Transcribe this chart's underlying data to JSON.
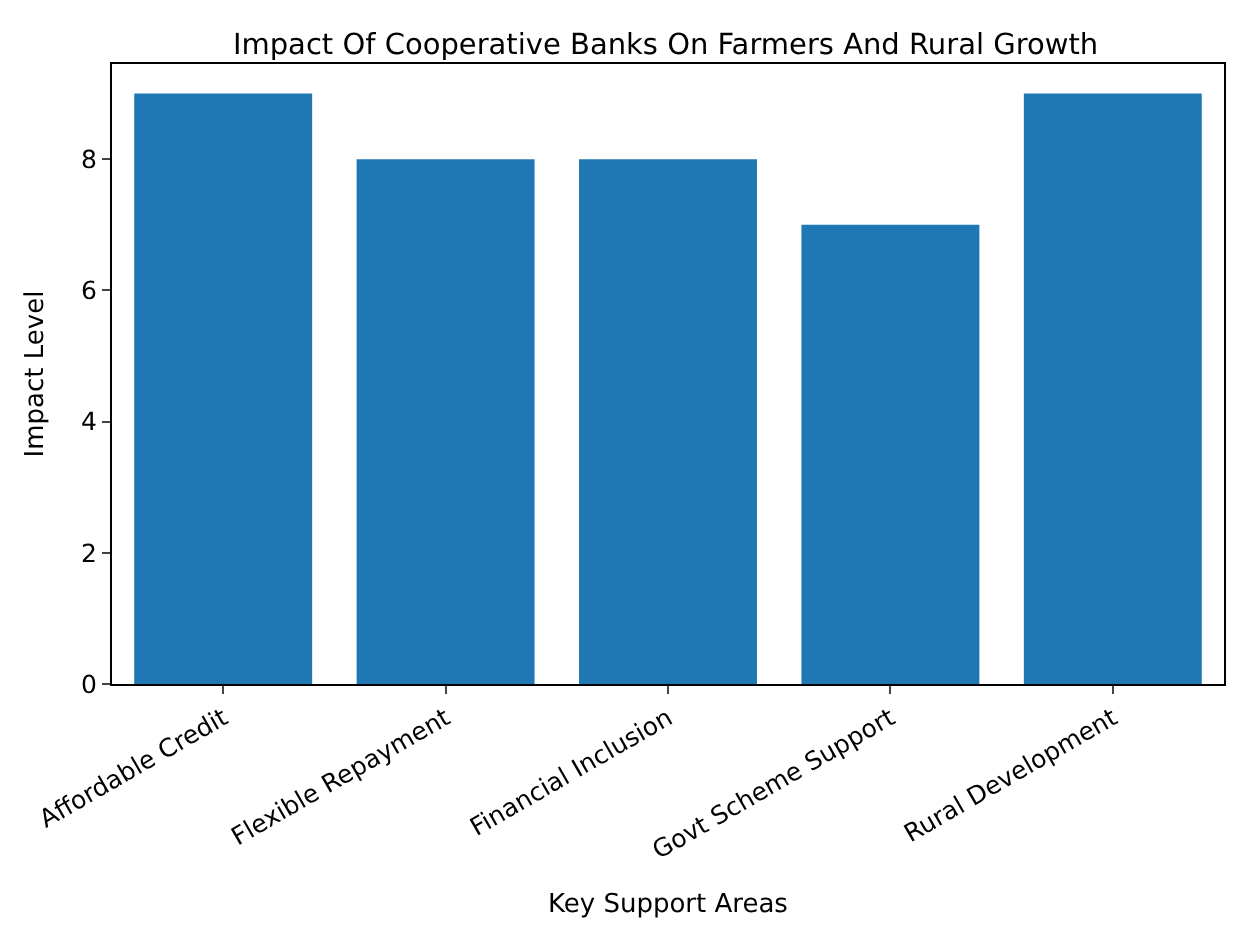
{
  "chart_data": {
    "type": "bar",
    "title": "Impact Of Cooperative Banks On Farmers And Rural Growth",
    "xlabel": "Key Support Areas",
    "ylabel": "Impact Level",
    "categories": [
      "Affordable Credit",
      "Flexible Repayment",
      "Financial Inclusion",
      "Govt Scheme Support",
      "Rural Development"
    ],
    "values": [
      9,
      8,
      8,
      7,
      9
    ],
    "color": "#1f77b4",
    "ylim": [
      0,
      9.45
    ],
    "yticks": [
      0,
      2,
      4,
      6,
      8
    ]
  }
}
